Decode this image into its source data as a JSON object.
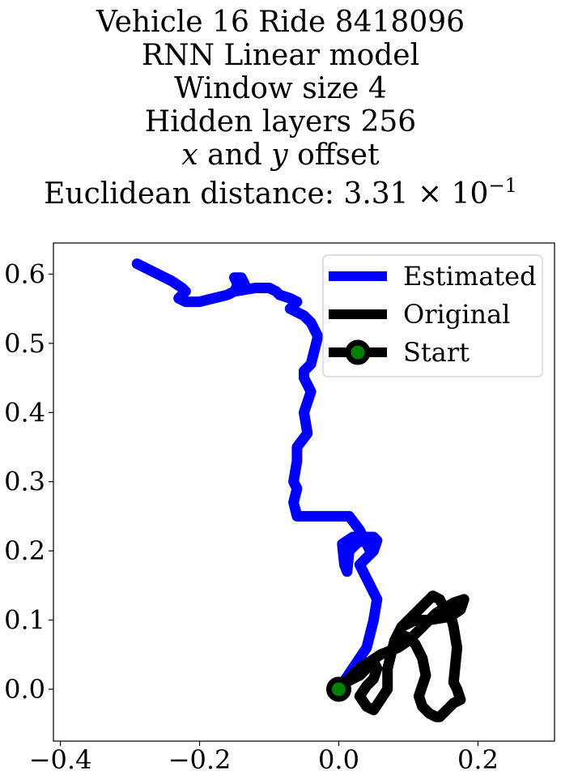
{
  "chart_data": {
    "type": "line",
    "title_lines": [
      "Vehicle 16 Ride 8418096",
      "RNN Linear model",
      "Window size 4",
      "Hidden layers 256"
    ],
    "title_offset_var_x": "x",
    "title_offset_and": " and ",
    "title_offset_var_y": "y",
    "title_offset_suffix": " offset",
    "title_distance_prefix": "Euclidean distance: 3.31 × 10",
    "title_distance_exponent": "−1",
    "xlim": [
      -0.41,
      0.31
    ],
    "ylim": [
      -0.075,
      0.645
    ],
    "xticks": [
      -0.4,
      -0.2,
      0.0,
      0.2
    ],
    "xtick_labels": [
      "−0.4",
      "−0.2",
      "0.0",
      "0.2"
    ],
    "yticks": [
      0.0,
      0.1,
      0.2,
      0.3,
      0.4,
      0.5,
      0.6
    ],
    "ytick_labels": [
      "0.0",
      "0.1",
      "0.2",
      "0.3",
      "0.4",
      "0.5",
      "0.6"
    ],
    "grid": false,
    "legend_position": "top-right",
    "colors": {
      "estimated": "#0000ff",
      "original": "#000000",
      "start_marker": "#008000"
    },
    "series": [
      {
        "name": "Estimated",
        "x": [
          0.0,
          0.02,
          0.04,
          0.05,
          0.055,
          0.05,
          0.05,
          0.045,
          0.04,
          0.035,
          0.03,
          0.04,
          0.05,
          0.055,
          0.05,
          0.04,
          0.025,
          0.015,
          0.012,
          0.008,
          0.005,
          0.02,
          0.03,
          0.04,
          0.05,
          0.045,
          0.03,
          0.015,
          0.01,
          -0.01,
          -0.03,
          -0.06,
          -0.065,
          -0.06,
          -0.065,
          -0.06,
          -0.06,
          -0.045,
          -0.05,
          -0.04,
          -0.05,
          -0.05,
          -0.04,
          -0.035,
          -0.03,
          -0.04,
          -0.05,
          -0.06,
          -0.07,
          -0.065,
          -0.06,
          -0.07,
          -0.085,
          -0.09,
          -0.1,
          -0.12,
          -0.15,
          -0.16,
          -0.15,
          -0.145,
          -0.15,
          -0.14,
          -0.135,
          -0.14,
          -0.15,
          -0.16,
          -0.18,
          -0.2,
          -0.22,
          -0.23,
          -0.22,
          -0.225,
          -0.24,
          -0.26,
          -0.29
        ],
        "y": [
          0.0,
          0.03,
          0.06,
          0.1,
          0.13,
          0.14,
          0.14,
          0.15,
          0.16,
          0.17,
          0.18,
          0.19,
          0.2,
          0.215,
          0.22,
          0.22,
          0.21,
          0.2,
          0.17,
          0.18,
          0.21,
          0.22,
          0.22,
          0.215,
          0.21,
          0.2,
          0.23,
          0.25,
          0.25,
          0.25,
          0.25,
          0.25,
          0.27,
          0.29,
          0.3,
          0.33,
          0.35,
          0.37,
          0.4,
          0.43,
          0.45,
          0.46,
          0.47,
          0.49,
          0.51,
          0.53,
          0.54,
          0.545,
          0.55,
          0.555,
          0.56,
          0.565,
          0.57,
          0.575,
          0.58,
          0.58,
          0.575,
          0.57,
          0.575,
          0.585,
          0.595,
          0.595,
          0.585,
          0.58,
          0.575,
          0.57,
          0.565,
          0.56,
          0.56,
          0.565,
          0.575,
          0.58,
          0.59,
          0.6,
          0.615
        ]
      },
      {
        "name": "Original",
        "x": [
          0.0,
          0.03,
          0.06,
          0.085,
          0.1,
          0.12,
          0.14,
          0.165,
          0.18,
          0.175,
          0.16,
          0.13,
          0.11,
          0.1,
          0.09,
          0.085,
          0.1,
          0.11,
          0.12,
          0.125,
          0.12,
          0.115,
          0.12,
          0.13,
          0.14,
          0.145,
          0.15,
          0.155,
          0.16,
          0.165,
          0.175,
          0.17,
          0.165,
          0.17,
          0.165,
          0.16,
          0.15,
          0.145,
          0.135,
          0.13,
          0.12,
          0.11,
          0.1,
          0.09,
          0.08,
          0.075,
          0.07,
          0.07,
          0.06,
          0.05,
          0.04,
          0.03,
          0.04,
          0.05,
          0.055,
          0.05,
          0.04,
          0.03,
          0.02,
          0.01,
          0.0
        ],
        "y": [
          0.0,
          0.03,
          0.05,
          0.06,
          0.07,
          0.09,
          0.11,
          0.125,
          0.13,
          0.115,
          0.105,
          0.1,
          0.1,
          0.095,
          0.09,
          0.08,
          0.075,
          0.065,
          0.045,
          0.02,
          0.005,
          -0.01,
          -0.025,
          -0.035,
          -0.04,
          -0.04,
          -0.035,
          -0.03,
          -0.025,
          -0.02,
          -0.015,
          0.0,
          0.01,
          0.06,
          0.09,
          0.11,
          0.12,
          0.13,
          0.135,
          0.13,
          0.12,
          0.11,
          0.1,
          0.09,
          0.07,
          0.05,
          0.03,
          0.0,
          -0.015,
          -0.03,
          -0.025,
          -0.01,
          0.005,
          0.015,
          0.03,
          0.04,
          0.03,
          0.02,
          0.015,
          0.01,
          0.0
        ]
      }
    ],
    "start_point": {
      "name": "Start",
      "x": 0.0,
      "y": 0.0
    }
  }
}
